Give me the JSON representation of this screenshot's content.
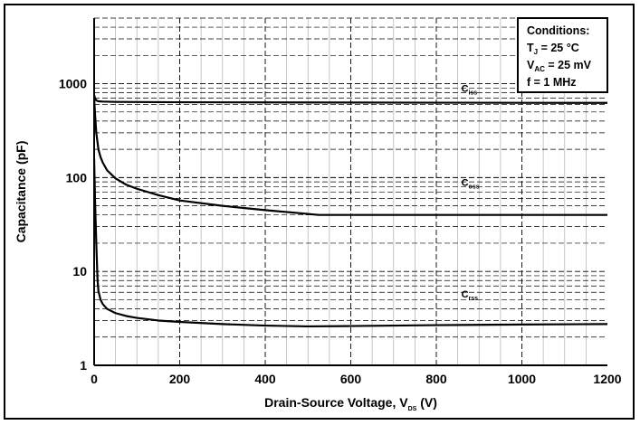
{
  "chart_data": {
    "type": "line",
    "title": "",
    "xlabel": "Drain-Source Voltage, V",
    "xlabel_sub": "DS",
    "xlabel_unit": " (V)",
    "ylabel": "Capacitance (pF)",
    "xlim": [
      0,
      1200
    ],
    "ylim": [
      1,
      5000
    ],
    "yscale": "log",
    "xticks": [
      "0",
      "200",
      "400",
      "600",
      "800",
      "1000",
      "1200"
    ],
    "yticks": [
      "1",
      "10",
      "100",
      "1000"
    ],
    "grid": true,
    "series": [
      {
        "name": "C",
        "name_sub": "iss",
        "label_at": [
          960,
          820
        ],
        "x": [
          0,
          2,
          5,
          10,
          20,
          50,
          100,
          200,
          400,
          600,
          800,
          1000,
          1200
        ],
        "y": [
          760,
          700,
          665,
          650,
          645,
          640,
          638,
          635,
          632,
          630,
          628,
          626,
          625
        ]
      },
      {
        "name": "C",
        "name_sub": "oss",
        "label_at": [
          960,
          82
        ],
        "x": [
          0,
          2,
          5,
          10,
          15,
          20,
          30,
          50,
          75,
          100,
          150,
          200,
          300,
          400,
          500,
          525,
          600,
          800,
          1000,
          1200
        ],
        "y": [
          700,
          480,
          300,
          200,
          165,
          145,
          120,
          98,
          84,
          76,
          65,
          57,
          50,
          45,
          41,
          40,
          40,
          40,
          40,
          40
        ]
      },
      {
        "name": "C",
        "name_sub": "rss",
        "label_at": [
          960,
          5.3
        ],
        "x": [
          0,
          2,
          5,
          8,
          10,
          15,
          20,
          30,
          50,
          75,
          100,
          150,
          200,
          300,
          400,
          500,
          600,
          800,
          1000,
          1200
        ],
        "y": [
          160,
          60,
          20,
          8,
          6.2,
          5,
          4.5,
          4,
          3.6,
          3.35,
          3.2,
          3.0,
          2.9,
          2.75,
          2.65,
          2.6,
          2.62,
          2.68,
          2.72,
          2.75
        ]
      }
    ],
    "conditions": {
      "title": "Conditions:",
      "lines": [
        {
          "main": "T",
          "sub": "J",
          "rest": " = 25 °C"
        },
        {
          "main": "V",
          "sub": "AC",
          "rest": " = 25 mV"
        },
        {
          "main": "f = 1 MHz",
          "sub": "",
          "rest": ""
        }
      ]
    }
  }
}
